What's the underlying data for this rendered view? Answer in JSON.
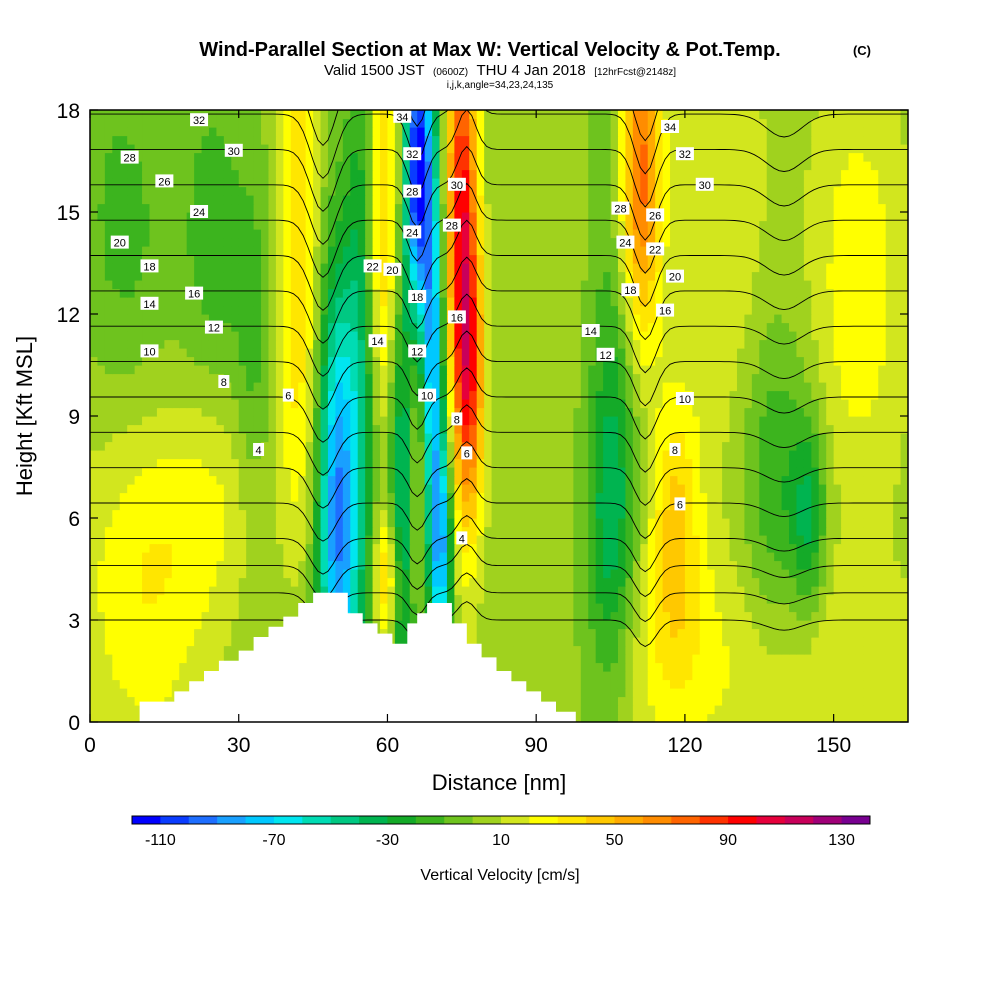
{
  "chart_data": {
    "type": "heatmap",
    "title": "Wind-Parallel Section at Max W: Vertical Velocity & Pot.Temp.",
    "title_units": "(C)",
    "subtitle": {
      "valid": "Valid 1500 JST",
      "utc": "(0600Z)",
      "date": "THU 4 Jan 2018",
      "fcst": "[12hrFcst@2148z]"
    },
    "info_line": "i,j,k,angle=34,23,24,135",
    "xlabel": "Distance [nm]",
    "ylabel": "Height [Kft MSL]",
    "xlim": [
      0,
      165
    ],
    "ylim": [
      0,
      18
    ],
    "x_ticks": [
      "0",
      "30",
      "60",
      "90",
      "120",
      "150"
    ],
    "x_tick_values": [
      0,
      30,
      60,
      90,
      120,
      150
    ],
    "y_ticks": [
      "0",
      "3",
      "6",
      "9",
      "12",
      "15",
      "18"
    ],
    "y_tick_values": [
      0,
      3,
      6,
      9,
      12,
      15,
      18
    ],
    "colorbar": {
      "label": "Vertical Velocity [cm/s]",
      "tick_labels": [
        "-110",
        "-70",
        "-30",
        "10",
        "50",
        "90",
        "130"
      ],
      "tick_values": [
        -110,
        -70,
        -30,
        10,
        50,
        90,
        130
      ],
      "bounds": [
        -120,
        140
      ],
      "colors": [
        "#0000ff",
        "#0a3cff",
        "#1e6eff",
        "#19a0ff",
        "#00c8ff",
        "#00e6f0",
        "#00dcb4",
        "#00c882",
        "#00b450",
        "#14aa28",
        "#3cb41e",
        "#6ec31e",
        "#a0d21e",
        "#d2e61e",
        "#ffff00",
        "#ffe600",
        "#ffc800",
        "#ffaa00",
        "#ff8c00",
        "#ff6400",
        "#ff3200",
        "#ff0000",
        "#e6003c",
        "#c8005a",
        "#a00078",
        "#780090"
      ]
    },
    "terrain": [
      [
        10,
        0
      ],
      [
        10,
        0.6
      ],
      [
        17,
        0.6
      ],
      [
        17,
        0.9
      ],
      [
        20,
        0.9
      ],
      [
        20,
        1.2
      ],
      [
        23,
        1.2
      ],
      [
        23,
        1.5
      ],
      [
        26,
        1.5
      ],
      [
        26,
        1.8
      ],
      [
        30,
        1.8
      ],
      [
        30,
        2.1
      ],
      [
        33,
        2.1
      ],
      [
        33,
        2.5
      ],
      [
        36,
        2.5
      ],
      [
        36,
        2.8
      ],
      [
        39,
        2.8
      ],
      [
        39,
        3.1
      ],
      [
        42,
        3.1
      ],
      [
        42,
        3.5
      ],
      [
        45,
        3.5
      ],
      [
        45,
        3.8
      ],
      [
        52,
        3.8
      ],
      [
        52,
        3.2
      ],
      [
        55,
        3.2
      ],
      [
        55,
        2.9
      ],
      [
        58,
        2.9
      ],
      [
        58,
        2.6
      ],
      [
        61,
        2.6
      ],
      [
        61,
        2.3
      ],
      [
        64,
        2.3
      ],
      [
        64,
        2.9
      ],
      [
        66,
        2.9
      ],
      [
        66,
        3.2
      ],
      [
        68,
        3.2
      ],
      [
        68,
        3.5
      ],
      [
        73,
        3.5
      ],
      [
        73,
        2.9
      ],
      [
        76,
        2.9
      ],
      [
        76,
        2.3
      ],
      [
        79,
        2.3
      ],
      [
        79,
        1.9
      ],
      [
        82,
        1.9
      ],
      [
        82,
        1.5
      ],
      [
        85,
        1.5
      ],
      [
        85,
        1.2
      ],
      [
        88,
        1.2
      ],
      [
        88,
        0.9
      ],
      [
        91,
        0.9
      ],
      [
        91,
        0.6
      ],
      [
        94,
        0.6
      ],
      [
        94,
        0.3
      ],
      [
        98,
        0.3
      ],
      [
        98,
        0
      ]
    ],
    "w_features": [
      {
        "x": 50,
        "y": 6.2,
        "sx": 2.8,
        "sy": 5.0,
        "v": -95
      },
      {
        "x": 55,
        "y": 11.5,
        "sx": 2.2,
        "sy": 7.0,
        "v": -40
      },
      {
        "x": 66,
        "y": 16.5,
        "sx": 1.8,
        "sy": 3.0,
        "v": -115
      },
      {
        "x": 69,
        "y": 11.0,
        "sx": 1.6,
        "sy": 5.0,
        "v": -80
      },
      {
        "x": 71,
        "y": 5.0,
        "sx": 1.5,
        "sy": 2.5,
        "v": -75
      },
      {
        "x": 63,
        "y": 6.0,
        "sx": 2.0,
        "sy": 5.0,
        "v": -55
      },
      {
        "x": 75,
        "y": 14.5,
        "sx": 2.2,
        "sy": 5.0,
        "v": 95
      },
      {
        "x": 77,
        "y": 10.0,
        "sx": 2.0,
        "sy": 3.0,
        "v": 55
      },
      {
        "x": 59,
        "y": 14.5,
        "sx": 2.6,
        "sy": 4.5,
        "v": 45
      },
      {
        "x": 60,
        "y": 4.2,
        "sx": 2.0,
        "sy": 1.4,
        "v": 45
      },
      {
        "x": 66,
        "y": 7.5,
        "sx": 1.6,
        "sy": 3.0,
        "v": 30
      },
      {
        "x": 42,
        "y": 14.5,
        "sx": 2.6,
        "sy": 6.0,
        "v": 35
      },
      {
        "x": 111,
        "y": 16.0,
        "sx": 3.0,
        "sy": 3.5,
        "v": 75
      },
      {
        "x": 118,
        "y": 6.0,
        "sx": 3.5,
        "sy": 2.8,
        "v": 35
      },
      {
        "x": 105,
        "y": 5.5,
        "sx": 3.5,
        "sy": 3.5,
        "v": -35
      },
      {
        "x": 106,
        "y": 12.0,
        "sx": 4.0,
        "sy": 5.0,
        "v": -20
      },
      {
        "x": 138,
        "y": 7.0,
        "sx": 5.0,
        "sy": 3.5,
        "v": -25
      },
      {
        "x": 145,
        "y": 6.0,
        "sx": 2.5,
        "sy": 2.0,
        "v": -35
      },
      {
        "x": 128,
        "y": 13.5,
        "sx": 7.0,
        "sy": 5.0,
        "v": 20
      },
      {
        "x": 155,
        "y": 13.0,
        "sx": 7.0,
        "sy": 5.0,
        "v": 20
      },
      {
        "x": 25,
        "y": 14.5,
        "sx": 4.0,
        "sy": 3.0,
        "v": -20
      },
      {
        "x": 33,
        "y": 11.0,
        "sx": 3.0,
        "sy": 4.0,
        "v": -20
      },
      {
        "x": 6,
        "y": 15.0,
        "sx": 6.0,
        "sy": 3.5,
        "v": -15
      },
      {
        "x": 10,
        "y": 4.0,
        "sx": 10.0,
        "sy": 3.5,
        "v": 22
      },
      {
        "x": 25,
        "y": 6.5,
        "sx": 10.0,
        "sy": 2.5,
        "v": 15
      },
      {
        "x": 115,
        "y": 2.0,
        "sx": 10.0,
        "sy": 2.5,
        "v": 18
      },
      {
        "x": 150,
        "y": 1.5,
        "sx": 15.0,
        "sy": 2.5,
        "v": 18
      }
    ],
    "theta_contours": {
      "levels": [
        2,
        4,
        6,
        8,
        10,
        12,
        14,
        16,
        18,
        20,
        22,
        24,
        26,
        28,
        30,
        32,
        34
      ],
      "base_height_kft": 3.0,
      "spacing_kft": 0.8
    },
    "contour_labels": [
      {
        "x": 22,
        "y": 17.7,
        "text": "32"
      },
      {
        "x": 29,
        "y": 16.8,
        "text": "30"
      },
      {
        "x": 8,
        "y": 16.6,
        "text": "28"
      },
      {
        "x": 15,
        "y": 15.9,
        "text": "26"
      },
      {
        "x": 22,
        "y": 15.0,
        "text": "24"
      },
      {
        "x": 6,
        "y": 14.1,
        "text": "20"
      },
      {
        "x": 12,
        "y": 13.4,
        "text": "18"
      },
      {
        "x": 21,
        "y": 12.6,
        "text": "16"
      },
      {
        "x": 12,
        "y": 12.3,
        "text": "14"
      },
      {
        "x": 25,
        "y": 11.6,
        "text": "12"
      },
      {
        "x": 12,
        "y": 10.9,
        "text": "10"
      },
      {
        "x": 27,
        "y": 10.0,
        "text": "8"
      },
      {
        "x": 40,
        "y": 9.6,
        "text": "6"
      },
      {
        "x": 34,
        "y": 8.0,
        "text": "4"
      },
      {
        "x": 57,
        "y": 13.4,
        "text": "22"
      },
      {
        "x": 61,
        "y": 13.3,
        "text": "20"
      },
      {
        "x": 58,
        "y": 11.2,
        "text": "14"
      },
      {
        "x": 63,
        "y": 17.8,
        "text": "34"
      },
      {
        "x": 65,
        "y": 16.7,
        "text": "32"
      },
      {
        "x": 65,
        "y": 15.6,
        "text": "28"
      },
      {
        "x": 65,
        "y": 14.4,
        "text": "24"
      },
      {
        "x": 66,
        "y": 12.5,
        "text": "18"
      },
      {
        "x": 66,
        "y": 10.9,
        "text": "12"
      },
      {
        "x": 68,
        "y": 9.6,
        "text": "10"
      },
      {
        "x": 74,
        "y": 15.8,
        "text": "30"
      },
      {
        "x": 73,
        "y": 14.6,
        "text": "28"
      },
      {
        "x": 74,
        "y": 11.9,
        "text": "16"
      },
      {
        "x": 74,
        "y": 8.9,
        "text": "8"
      },
      {
        "x": 76,
        "y": 7.9,
        "text": "6"
      },
      {
        "x": 75,
        "y": 5.4,
        "text": "4"
      },
      {
        "x": 117,
        "y": 17.5,
        "text": "34"
      },
      {
        "x": 120,
        "y": 16.7,
        "text": "32"
      },
      {
        "x": 124,
        "y": 15.8,
        "text": "30"
      },
      {
        "x": 107,
        "y": 15.1,
        "text": "28"
      },
      {
        "x": 114,
        "y": 14.9,
        "text": "26"
      },
      {
        "x": 108,
        "y": 14.1,
        "text": "24"
      },
      {
        "x": 114,
        "y": 13.9,
        "text": "22"
      },
      {
        "x": 118,
        "y": 13.1,
        "text": "20"
      },
      {
        "x": 109,
        "y": 12.7,
        "text": "18"
      },
      {
        "x": 116,
        "y": 12.1,
        "text": "16"
      },
      {
        "x": 101,
        "y": 11.5,
        "text": "14"
      },
      {
        "x": 104,
        "y": 10.8,
        "text": "12"
      },
      {
        "x": 120,
        "y": 9.5,
        "text": "10"
      },
      {
        "x": 118,
        "y": 8.0,
        "text": "8"
      },
      {
        "x": 119,
        "y": 6.4,
        "text": "6"
      }
    ]
  }
}
